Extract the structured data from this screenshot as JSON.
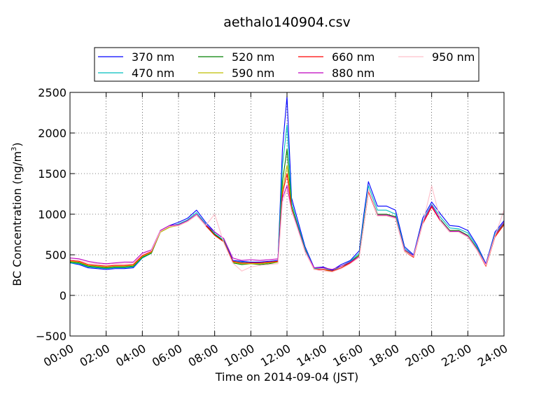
{
  "chart_data": {
    "type": "line",
    "title": "aethalo140904.csv",
    "xlabel": "Time on 2014-09-04 (JST)",
    "ylabel": "BC Concentration (ng/m³)",
    "ylabel_parts": {
      "prefix": "BC Concentration (ng/m",
      "superscript": "3",
      "suffix": ")"
    },
    "xlim": [
      "00:00",
      "24:00"
    ],
    "ylim": [
      -500,
      2500
    ],
    "x_ticks": [
      "00:00",
      "02:00",
      "04:00",
      "06:00",
      "08:00",
      "10:00",
      "12:00",
      "14:00",
      "16:00",
      "18:00",
      "20:00",
      "22:00",
      "24:00"
    ],
    "y_ticks": [
      "−500",
      "0",
      "500",
      "1000",
      "1500",
      "2000",
      "2500"
    ],
    "y_tick_values": [
      -500,
      0,
      500,
      1000,
      1500,
      2000,
      2500
    ],
    "grid": true,
    "legend_position": "top-center",
    "legend_columns": 4,
    "x": [
      "00:00",
      "00:30",
      "01:00",
      "01:30",
      "02:00",
      "02:30",
      "03:00",
      "03:30",
      "04:00",
      "04:30",
      "05:00",
      "05:30",
      "06:00",
      "06:30",
      "07:00",
      "07:30",
      "08:00",
      "08:30",
      "09:00",
      "09:30",
      "10:00",
      "10:30",
      "11:00",
      "11:30",
      "11:45",
      "12:00",
      "12:15",
      "12:30",
      "13:00",
      "13:30",
      "14:00",
      "14:30",
      "15:00",
      "15:30",
      "16:00",
      "16:15",
      "16:30",
      "17:00",
      "17:30",
      "18:00",
      "18:30",
      "19:00",
      "19:30",
      "20:00",
      "20:30",
      "21:00",
      "21:30",
      "22:00",
      "22:30",
      "23:00",
      "23:30",
      "24:00"
    ],
    "series": [
      {
        "name": "370 nm",
        "color": "#0000ff",
        "values": [
          400,
          380,
          340,
          330,
          320,
          330,
          330,
          340,
          460,
          520,
          800,
          860,
          900,
          950,
          1050,
          900,
          780,
          700,
          430,
          420,
          410,
          410,
          420,
          430,
          1800,
          2450,
          1200,
          1000,
          600,
          340,
          350,
          310,
          380,
          430,
          550,
          1000,
          1400,
          1100,
          1100,
          1050,
          600,
          500,
          950,
          1150,
          1000,
          860,
          850,
          800,
          620,
          390,
          780,
          920
        ]
      },
      {
        "name": "470 nm",
        "color": "#00bfbf",
        "values": [
          400,
          390,
          350,
          340,
          330,
          340,
          340,
          350,
          460,
          520,
          790,
          850,
          880,
          930,
          1020,
          880,
          760,
          680,
          420,
          410,
          400,
          400,
          410,
          420,
          1600,
          2100,
          1150,
          950,
          580,
          330,
          340,
          300,
          360,
          420,
          520,
          950,
          1350,
          1050,
          1050,
          1000,
          580,
          490,
          920,
          1120,
          960,
          830,
          820,
          770,
          600,
          380,
          760,
          900
        ]
      },
      {
        "name": "520 nm",
        "color": "#008000",
        "values": [
          410,
          400,
          360,
          350,
          340,
          350,
          350,
          360,
          470,
          520,
          780,
          840,
          870,
          920,
          1000,
          870,
          750,
          670,
          400,
          380,
          390,
          380,
          390,
          410,
          1400,
          1800,
          1100,
          920,
          560,
          320,
          320,
          290,
          340,
          410,
          500,
          900,
          1300,
          1000,
          1000,
          970,
          560,
          480,
          900,
          1100,
          930,
          800,
          800,
          740,
          580,
          370,
          740,
          880
        ]
      },
      {
        "name": "590 nm",
        "color": "#bfbf00",
        "values": [
          420,
          410,
          370,
          360,
          350,
          360,
          360,
          370,
          480,
          530,
          780,
          840,
          860,
          910,
          990,
          860,
          740,
          660,
          410,
          390,
          390,
          390,
          400,
          410,
          1300,
          1600,
          1080,
          900,
          550,
          320,
          320,
          290,
          340,
          400,
          490,
          880,
          1280,
          990,
          990,
          960,
          550,
          470,
          890,
          1090,
          920,
          790,
          790,
          730,
          570,
          360,
          730,
          870
        ]
      },
      {
        "name": "660 nm",
        "color": "#ff0000",
        "values": [
          430,
          420,
          380,
          370,
          360,
          370,
          370,
          380,
          490,
          540,
          790,
          850,
          860,
          910,
          990,
          860,
          740,
          660,
          420,
          400,
          400,
          400,
          410,
          420,
          1250,
          1500,
          1060,
          890,
          540,
          320,
          320,
          300,
          340,
          400,
          480,
          870,
          1280,
          980,
          980,
          950,
          540,
          470,
          880,
          1090,
          910,
          780,
          780,
          720,
          560,
          360,
          720,
          870
        ]
      },
      {
        "name": "880 nm",
        "color": "#bf00bf",
        "values": [
          460,
          450,
          420,
          400,
          390,
          400,
          410,
          410,
          520,
          560,
          800,
          860,
          870,
          920,
          1000,
          870,
          780,
          700,
          460,
          430,
          440,
          430,
          440,
          450,
          1200,
          1350,
          1050,
          900,
          550,
          340,
          340,
          320,
          360,
          410,
          480,
          880,
          1300,
          990,
          990,
          960,
          560,
          490,
          900,
          1110,
          920,
          790,
          790,
          730,
          570,
          380,
          740,
          900
        ]
      },
      {
        "name": "950 nm",
        "color": "#ffc0cb",
        "values": [
          440,
          430,
          400,
          390,
          380,
          390,
          390,
          400,
          500,
          550,
          790,
          850,
          860,
          910,
          990,
          860,
          1000,
          650,
          400,
          300,
          350,
          370,
          380,
          390,
          1150,
          1300,
          1040,
          880,
          540,
          320,
          300,
          290,
          330,
          390,
          470,
          870,
          1300,
          980,
          980,
          950,
          540,
          480,
          880,
          1350,
          910,
          780,
          780,
          720,
          560,
          370,
          730,
          1050
        ]
      }
    ]
  }
}
